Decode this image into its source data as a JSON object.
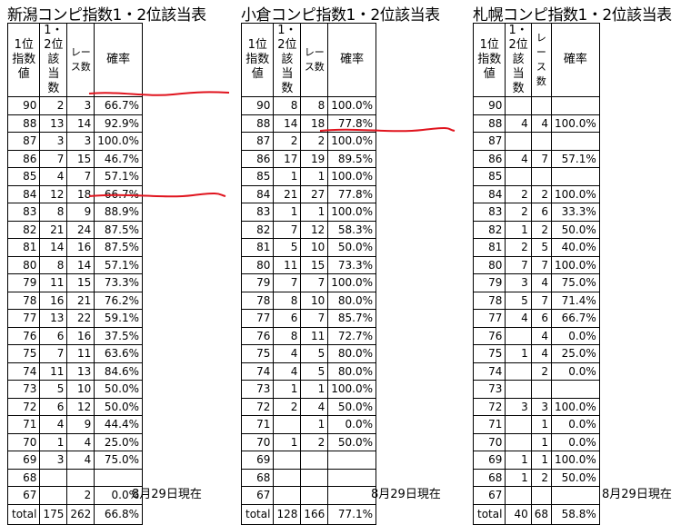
{
  "headers": {
    "rank_index": "1位\n指数値",
    "place_count": "1・2位\n該当数",
    "races": "レース数",
    "rate": "確率"
  },
  "footer_date": "8月29日現在",
  "tables": [
    {
      "title": "新潟コンピ指数1・2位該当表",
      "rows": [
        {
          "idx": "90",
          "hit": "2",
          "races": "3",
          "rate": "66.7%"
        },
        {
          "idx": "88",
          "hit": "13",
          "races": "14",
          "rate": "92.9%"
        },
        {
          "idx": "87",
          "hit": "3",
          "races": "3",
          "rate": "100.0%"
        },
        {
          "idx": "86",
          "hit": "7",
          "races": "15",
          "rate": "46.7%"
        },
        {
          "idx": "85",
          "hit": "4",
          "races": "7",
          "rate": "57.1%"
        },
        {
          "idx": "84",
          "hit": "12",
          "races": "18",
          "rate": "66.7%"
        },
        {
          "idx": "83",
          "hit": "8",
          "races": "9",
          "rate": "88.9%"
        },
        {
          "idx": "82",
          "hit": "21",
          "races": "24",
          "rate": "87.5%"
        },
        {
          "idx": "81",
          "hit": "14",
          "races": "16",
          "rate": "87.5%"
        },
        {
          "idx": "80",
          "hit": "8",
          "races": "14",
          "rate": "57.1%"
        },
        {
          "idx": "79",
          "hit": "11",
          "races": "15",
          "rate": "73.3%"
        },
        {
          "idx": "78",
          "hit": "16",
          "races": "21",
          "rate": "76.2%"
        },
        {
          "idx": "77",
          "hit": "13",
          "races": "22",
          "rate": "59.1%"
        },
        {
          "idx": "76",
          "hit": "6",
          "races": "16",
          "rate": "37.5%"
        },
        {
          "idx": "75",
          "hit": "7",
          "races": "11",
          "rate": "63.6%"
        },
        {
          "idx": "74",
          "hit": "11",
          "races": "13",
          "rate": "84.6%"
        },
        {
          "idx": "73",
          "hit": "5",
          "races": "10",
          "rate": "50.0%"
        },
        {
          "idx": "72",
          "hit": "6",
          "races": "12",
          "rate": "50.0%"
        },
        {
          "idx": "71",
          "hit": "4",
          "races": "9",
          "rate": "44.4%"
        },
        {
          "idx": "70",
          "hit": "1",
          "races": "4",
          "rate": "25.0%"
        },
        {
          "idx": "69",
          "hit": "3",
          "races": "4",
          "rate": "75.0%"
        },
        {
          "idx": "68",
          "hit": "",
          "races": "",
          "rate": ""
        },
        {
          "idx": "67",
          "hit": "",
          "races": "2",
          "rate": "0.0%"
        }
      ],
      "total": {
        "label": "total",
        "hit": "175",
        "races": "262",
        "rate": "66.8%"
      }
    },
    {
      "title": "小倉コンピ指数1・2位該当表",
      "rows": [
        {
          "idx": "90",
          "hit": "8",
          "races": "8",
          "rate": "100.0%"
        },
        {
          "idx": "88",
          "hit": "14",
          "races": "18",
          "rate": "77.8%"
        },
        {
          "idx": "87",
          "hit": "2",
          "races": "2",
          "rate": "100.0%"
        },
        {
          "idx": "86",
          "hit": "17",
          "races": "19",
          "rate": "89.5%"
        },
        {
          "idx": "85",
          "hit": "1",
          "races": "1",
          "rate": "100.0%"
        },
        {
          "idx": "84",
          "hit": "21",
          "races": "27",
          "rate": "77.8%"
        },
        {
          "idx": "83",
          "hit": "1",
          "races": "1",
          "rate": "100.0%"
        },
        {
          "idx": "82",
          "hit": "7",
          "races": "12",
          "rate": "58.3%"
        },
        {
          "idx": "81",
          "hit": "5",
          "races": "10",
          "rate": "50.0%"
        },
        {
          "idx": "80",
          "hit": "11",
          "races": "15",
          "rate": "73.3%"
        },
        {
          "idx": "79",
          "hit": "7",
          "races": "7",
          "rate": "100.0%"
        },
        {
          "idx": "78",
          "hit": "8",
          "races": "10",
          "rate": "80.0%"
        },
        {
          "idx": "77",
          "hit": "6",
          "races": "7",
          "rate": "85.7%"
        },
        {
          "idx": "76",
          "hit": "8",
          "races": "11",
          "rate": "72.7%"
        },
        {
          "idx": "75",
          "hit": "4",
          "races": "5",
          "rate": "80.0%"
        },
        {
          "idx": "74",
          "hit": "4",
          "races": "5",
          "rate": "80.0%"
        },
        {
          "idx": "73",
          "hit": "1",
          "races": "1",
          "rate": "100.0%"
        },
        {
          "idx": "72",
          "hit": "2",
          "races": "4",
          "rate": "50.0%"
        },
        {
          "idx": "71",
          "hit": "",
          "races": "1",
          "rate": "0.0%"
        },
        {
          "idx": "70",
          "hit": "1",
          "races": "2",
          "rate": "50.0%"
        },
        {
          "idx": "69",
          "hit": "",
          "races": "",
          "rate": ""
        },
        {
          "idx": "68",
          "hit": "",
          "races": "",
          "rate": ""
        },
        {
          "idx": "67",
          "hit": "",
          "races": "",
          "rate": ""
        }
      ],
      "total": {
        "label": "total",
        "hit": "128",
        "races": "166",
        "rate": "77.1%"
      }
    },
    {
      "title": "札幌コンピ指数1・2位該当表",
      "rows": [
        {
          "idx": "90",
          "hit": "",
          "races": "",
          "rate": ""
        },
        {
          "idx": "88",
          "hit": "4",
          "races": "4",
          "rate": "100.0%"
        },
        {
          "idx": "87",
          "hit": "",
          "races": "",
          "rate": ""
        },
        {
          "idx": "86",
          "hit": "4",
          "races": "7",
          "rate": "57.1%"
        },
        {
          "idx": "85",
          "hit": "",
          "races": "",
          "rate": ""
        },
        {
          "idx": "84",
          "hit": "2",
          "races": "2",
          "rate": "100.0%"
        },
        {
          "idx": "83",
          "hit": "2",
          "races": "6",
          "rate": "33.3%"
        },
        {
          "idx": "82",
          "hit": "1",
          "races": "2",
          "rate": "50.0%"
        },
        {
          "idx": "81",
          "hit": "2",
          "races": "5",
          "rate": "40.0%"
        },
        {
          "idx": "80",
          "hit": "7",
          "races": "7",
          "rate": "100.0%"
        },
        {
          "idx": "79",
          "hit": "3",
          "races": "4",
          "rate": "75.0%"
        },
        {
          "idx": "78",
          "hit": "5",
          "races": "7",
          "rate": "71.4%"
        },
        {
          "idx": "77",
          "hit": "4",
          "races": "6",
          "rate": "66.7%"
        },
        {
          "idx": "76",
          "hit": "",
          "races": "4",
          "rate": "0.0%"
        },
        {
          "idx": "75",
          "hit": "1",
          "races": "4",
          "rate": "25.0%"
        },
        {
          "idx": "74",
          "hit": "",
          "races": "2",
          "rate": "0.0%"
        },
        {
          "idx": "73",
          "hit": "",
          "races": "",
          "rate": ""
        },
        {
          "idx": "72",
          "hit": "3",
          "races": "3",
          "rate": "100.0%"
        },
        {
          "idx": "71",
          "hit": "",
          "races": "1",
          "rate": "0.0%"
        },
        {
          "idx": "70",
          "hit": "",
          "races": "1",
          "rate": "0.0%"
        },
        {
          "idx": "69",
          "hit": "1",
          "races": "1",
          "rate": "100.0%"
        },
        {
          "idx": "68",
          "hit": "1",
          "races": "2",
          "rate": "50.0%"
        },
        {
          "idx": "67",
          "hit": "",
          "races": "",
          "rate": ""
        }
      ],
      "total": {
        "label": "total",
        "hit": "40",
        "races": "68",
        "rate": "58.8%"
      }
    }
  ],
  "annotation_color": "#e0141e"
}
